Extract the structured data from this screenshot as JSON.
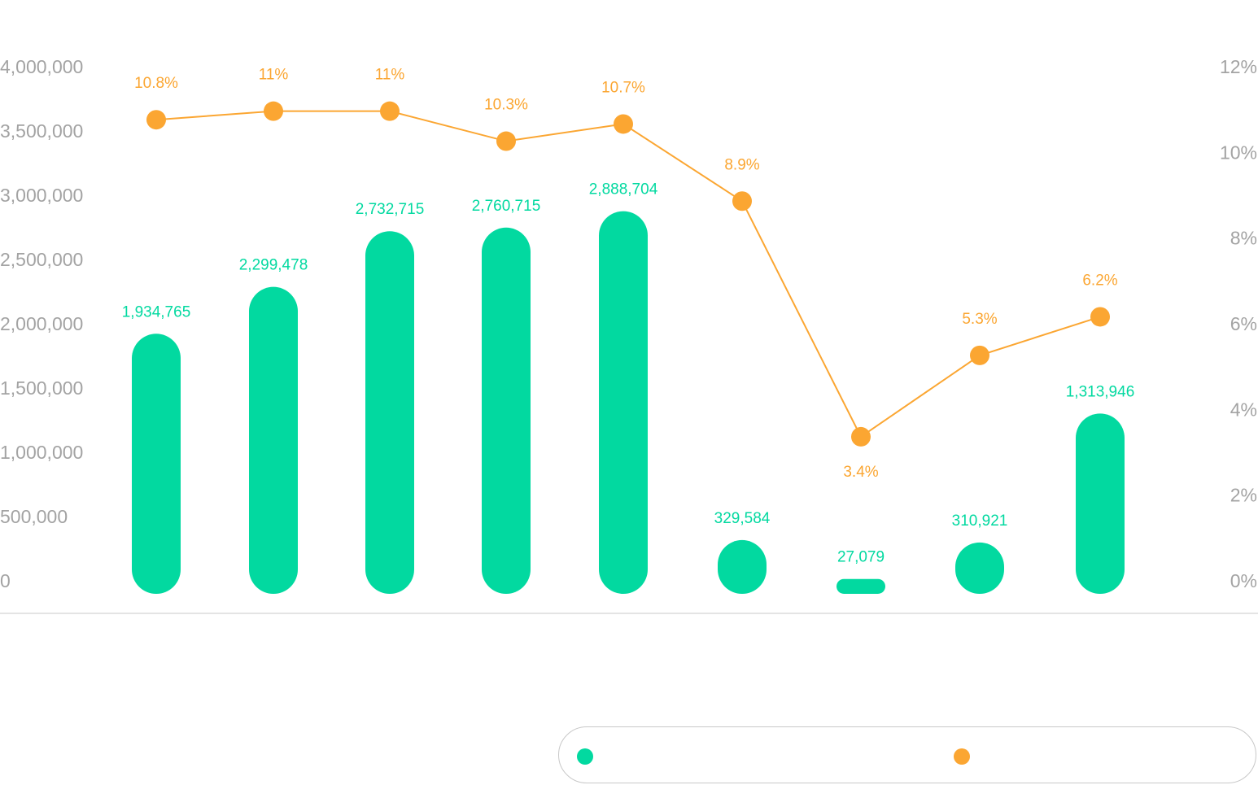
{
  "chart_data": {
    "type": "bar",
    "title": "",
    "xlabel": "",
    "ylabel": "",
    "categories": [
      "",
      "",
      "",
      "",
      "",
      "",
      "",
      "",
      ""
    ],
    "grid": false,
    "legend_position": "bottom-right",
    "left_axis": {
      "ylim": [
        0,
        4000000
      ],
      "ticks": [
        0,
        500000,
        1000000,
        1500000,
        2000000,
        2500000,
        3000000,
        3500000,
        4000000
      ],
      "tick_labels": [
        "0",
        "500,000",
        "1,000,000",
        "1,500,000",
        "2,000,000",
        "2,500,000",
        "3,000,000",
        "3,500,000",
        "4,000,000"
      ]
    },
    "right_axis": {
      "ylim": [
        0,
        12
      ],
      "ticks": [
        0,
        2,
        4,
        6,
        8,
        10,
        12
      ],
      "tick_labels": [
        "0%",
        "2%",
        "4%",
        "6%",
        "8%",
        "10%",
        "12%"
      ]
    },
    "series": [
      {
        "name": "",
        "type": "bar",
        "axis": "left",
        "color": "#02d9a0",
        "values": [
          1934765,
          2299478,
          2732715,
          2760715,
          2888704,
          329584,
          27079,
          310921,
          1313946
        ],
        "labels": [
          "1,934,765",
          "2,299,478",
          "2,732,715",
          "2,760,715",
          "2,888,704",
          "329,584",
          "27,079",
          "310,921",
          "1,313,946"
        ]
      },
      {
        "name": "",
        "type": "line",
        "axis": "right",
        "color": "#fba632",
        "values": [
          10.8,
          11,
          11,
          10.3,
          10.7,
          8.9,
          3.4,
          5.3,
          6.2
        ],
        "labels": [
          "10.8%",
          "11%",
          "11%",
          "10.3%",
          "10.7%",
          "8.9%",
          "3.4%",
          "5.3%",
          "6.2%"
        ],
        "label_positions": [
          "above",
          "above",
          "above",
          "above",
          "above",
          "above",
          "below",
          "above",
          "above"
        ]
      }
    ]
  },
  "legend": {
    "items": [
      {
        "name": "",
        "color": "#02d9a0"
      },
      {
        "name": "",
        "color": "#fba632"
      }
    ]
  },
  "colors": {
    "tick": "#a3a3a3",
    "baseline": "#c8c8c8",
    "bar": "#02d9a0",
    "line": "#fba632"
  }
}
